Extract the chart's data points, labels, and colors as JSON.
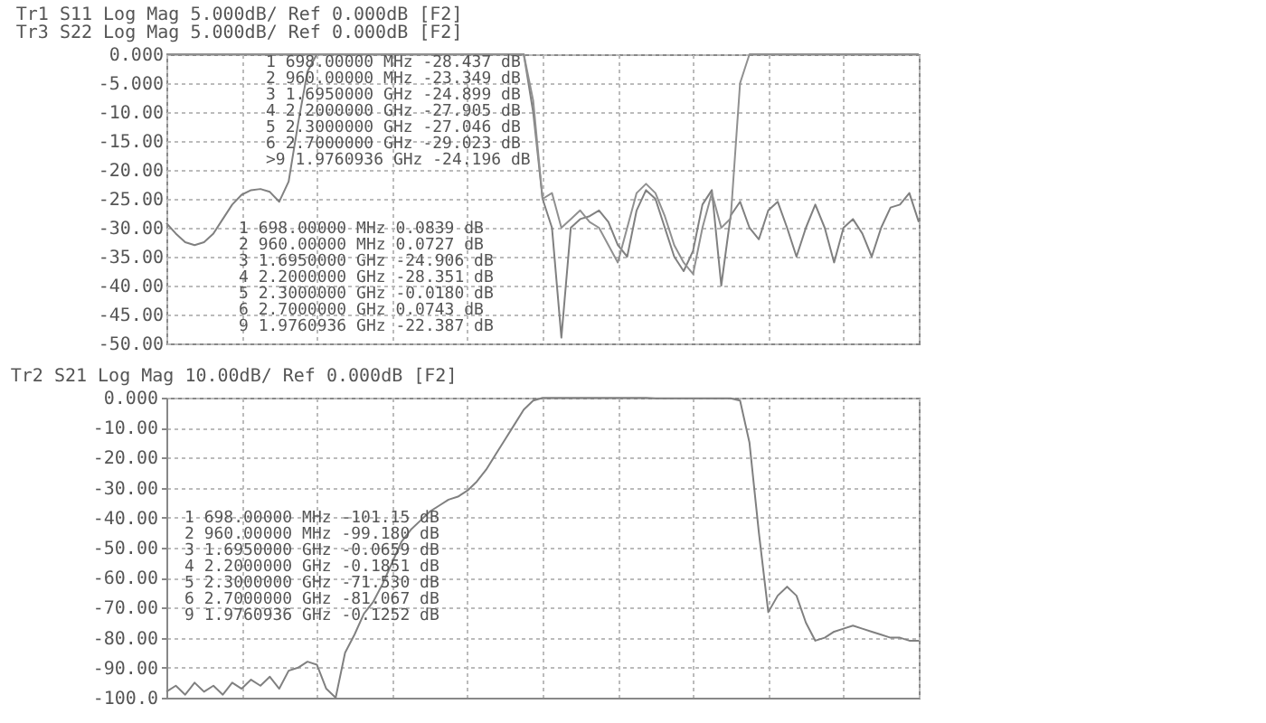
{
  "chart_data": [
    {
      "type": "line",
      "title": "Tr1 S11 Log Mag 5.000dB/ Ref 0.000dB [F2]",
      "subtitle": "Tr3 S22 Log Mag 5.000dB/ Ref 0.000dB [F2]",
      "categories": [
        null,
        null,
        null,
        null,
        null,
        null,
        null,
        null,
        null,
        null,
        null,
        null,
        null,
        null,
        null,
        null,
        null,
        null,
        null,
        null,
        null,
        null,
        null,
        null,
        null,
        null,
        null,
        null,
        null,
        null,
        null,
        null,
        null,
        null,
        null,
        null,
        null,
        null,
        null,
        null,
        null,
        null,
        null,
        null,
        null,
        null,
        null,
        null,
        null,
        null,
        null,
        null,
        null,
        null,
        null,
        null,
        null,
        null,
        null,
        null,
        null,
        null,
        null,
        null,
        null,
        null,
        null,
        null,
        null,
        null,
        null,
        null,
        null,
        null,
        null,
        null,
        null,
        null,
        null,
        null,
        null
      ],
      "series": [
        {
          "color": "#808080",
          "values": [
            -29.2,
            -31,
            -32.5,
            -33,
            -32.5,
            -31,
            -28.5,
            -26,
            -24.3,
            -23.5,
            -23.3,
            -23.8,
            -25.5,
            -22,
            -12,
            -3,
            0,
            0,
            0,
            0,
            0,
            0,
            0,
            0,
            0,
            0,
            0,
            0,
            0,
            0,
            0,
            0,
            0,
            0,
            0,
            0,
            0,
            0,
            0,
            -10,
            -25,
            -30,
            -49,
            -30,
            -28.5,
            -28,
            -27,
            -29,
            -33,
            -35,
            -27,
            -23.5,
            -25,
            -30,
            -35,
            -37.5,
            -34,
            -26,
            -23.5,
            -40,
            -27.9,
            -25.5,
            -30,
            -32,
            -27,
            -25.5,
            -30,
            -35,
            -30,
            -26,
            -30,
            -36,
            -30,
            -28.5,
            -31,
            -35,
            -30,
            -26.5,
            -26,
            -24,
            -29
          ]
        },
        {
          "color": "#909090",
          "values": [
            0,
            0,
            0,
            0,
            0,
            0,
            0,
            0,
            0,
            0,
            0,
            0,
            0,
            0,
            0,
            0,
            0,
            0,
            0,
            0,
            0,
            0,
            0,
            0,
            0,
            0,
            0,
            0,
            0,
            0,
            0,
            0,
            0,
            0,
            0,
            0,
            0,
            0,
            0,
            -8,
            -25,
            -24,
            -30,
            -28.5,
            -27,
            -29,
            -30,
            -33,
            -36,
            -30,
            -24,
            -22.4,
            -24,
            -28,
            -33,
            -36,
            -38,
            -30,
            -24,
            -30,
            -28.4,
            -5,
            0,
            0,
            0,
            0,
            0,
            0,
            0,
            0,
            0,
            0,
            0,
            0,
            0,
            0,
            0,
            0,
            0,
            0,
            0
          ]
        }
      ],
      "ylim": [
        -50,
        0
      ],
      "yticks": [
        {
          "value": 0,
          "label": "0.000"
        },
        {
          "value": -5,
          "label": "-5.000"
        },
        {
          "value": -10,
          "label": "-10.00"
        },
        {
          "value": -15,
          "label": "-15.00"
        },
        {
          "value": -20,
          "label": "-20.00"
        },
        {
          "value": -25,
          "label": "-25.00"
        },
        {
          "value": -30,
          "label": "-30.00"
        },
        {
          "value": -35,
          "label": "-35.00"
        },
        {
          "value": -40,
          "label": "-40.00"
        },
        {
          "value": -45,
          "label": "-45.00"
        },
        {
          "value": -50,
          "label": "-50.00"
        }
      ],
      "grid": true,
      "tick_labels": "y",
      "annotations": [
        "1   698.00000 MHz -28.437 dB",
        "2   960.00000 MHz -23.349 dB",
        "3   1.6950000 GHz -24.899 dB",
        "4   2.2000000 GHz -27.905 dB",
        "5   2.3000000 GHz -27.046 dB",
        "6   2.7000000 GHz -29.023 dB",
        ">9  1.9760936 GHz -24.196 dB",
        "1   698.00000 MHz  0.0839 dB",
        "2   960.00000 MHz  0.0727 dB",
        "3   1.6950000 GHz -24.906 dB",
        "4   2.2000000 GHz -28.351 dB",
        "5   2.3000000 GHz -0.0180 dB",
        "6   2.7000000 GHz  0.0743 dB",
        "9   1.9760936 GHz -22.387 dB"
      ]
    },
    {
      "type": "line",
      "title": "Tr2 S21 Log Mag 10.00dB/ Ref 0.000dB [F2]",
      "categories": [
        null,
        null,
        null,
        null,
        null,
        null,
        null,
        null,
        null,
        null,
        null,
        null,
        null,
        null,
        null,
        null,
        null,
        null,
        null,
        null,
        null,
        null,
        null,
        null,
        null,
        null,
        null,
        null,
        null,
        null,
        null,
        null,
        null,
        null,
        null,
        null,
        null,
        null,
        null,
        null,
        null,
        null,
        null,
        null,
        null,
        null,
        null,
        null,
        null,
        null,
        null,
        null,
        null,
        null,
        null,
        null,
        null,
        null,
        null,
        null,
        null,
        null,
        null,
        null,
        null,
        null,
        null,
        null,
        null,
        null,
        null,
        null,
        null,
        null,
        null,
        null,
        null,
        null,
        null,
        null,
        null
      ],
      "series": [
        {
          "color": "#808080",
          "values": [
            -98,
            -96,
            -99,
            -95,
            -98,
            -96,
            -99,
            -95,
            -97,
            -94,
            -96,
            -93,
            -97,
            -91,
            -90,
            -88,
            -89,
            -97,
            -100,
            -85,
            -79,
            -72,
            -68,
            -62,
            -55,
            -48,
            -44,
            -41,
            -38,
            -36,
            -34,
            -33,
            -31,
            -28,
            -24,
            -19,
            -14,
            -9,
            -4,
            -1,
            -0.1,
            -0.1,
            -0.1,
            -0.1,
            -0.1,
            -0.1,
            -0.1,
            -0.1,
            -0.1,
            -0.1,
            -0.1,
            -0.1,
            -0.2,
            -0.2,
            -0.2,
            -0.2,
            -0.2,
            -0.2,
            -0.2,
            -0.2,
            -0.2,
            -1,
            -15,
            -45,
            -71.5,
            -66,
            -63,
            -66,
            -75,
            -81,
            -80,
            -78,
            -77,
            -76,
            -77,
            -78,
            -79,
            -80,
            -80,
            -81,
            -81
          ]
        }
      ],
      "ylim": [
        -100,
        0
      ],
      "yticks": [
        {
          "value": 0,
          "label": "0.000"
        },
        {
          "value": -10,
          "label": "-10.00"
        },
        {
          "value": -20,
          "label": "-20.00"
        },
        {
          "value": -30,
          "label": "-30.00"
        },
        {
          "value": -40,
          "label": "-40.00"
        },
        {
          "value": -50,
          "label": "-50.00"
        },
        {
          "value": -60,
          "label": "-60.00"
        },
        {
          "value": -70,
          "label": "-70.00"
        },
        {
          "value": -80,
          "label": "-80.00"
        },
        {
          "value": -90,
          "label": "-90.00"
        },
        {
          "value": -100,
          "label": "-100.0"
        }
      ],
      "grid": true,
      "tick_labels": "y",
      "annotations": [
        "1   698.00000 MHz -101.15 dB",
        "2   960.00000 MHz -99.180 dB",
        "3   1.6950000 GHz -0.0659 dB",
        "4   2.2000000 GHz -0.1851 dB",
        "5   2.3000000 GHz -71.530 dB",
        "6   2.7000000 GHz -81.067 dB",
        "9   1.9760936 GHz -0.1252 dB"
      ]
    }
  ]
}
